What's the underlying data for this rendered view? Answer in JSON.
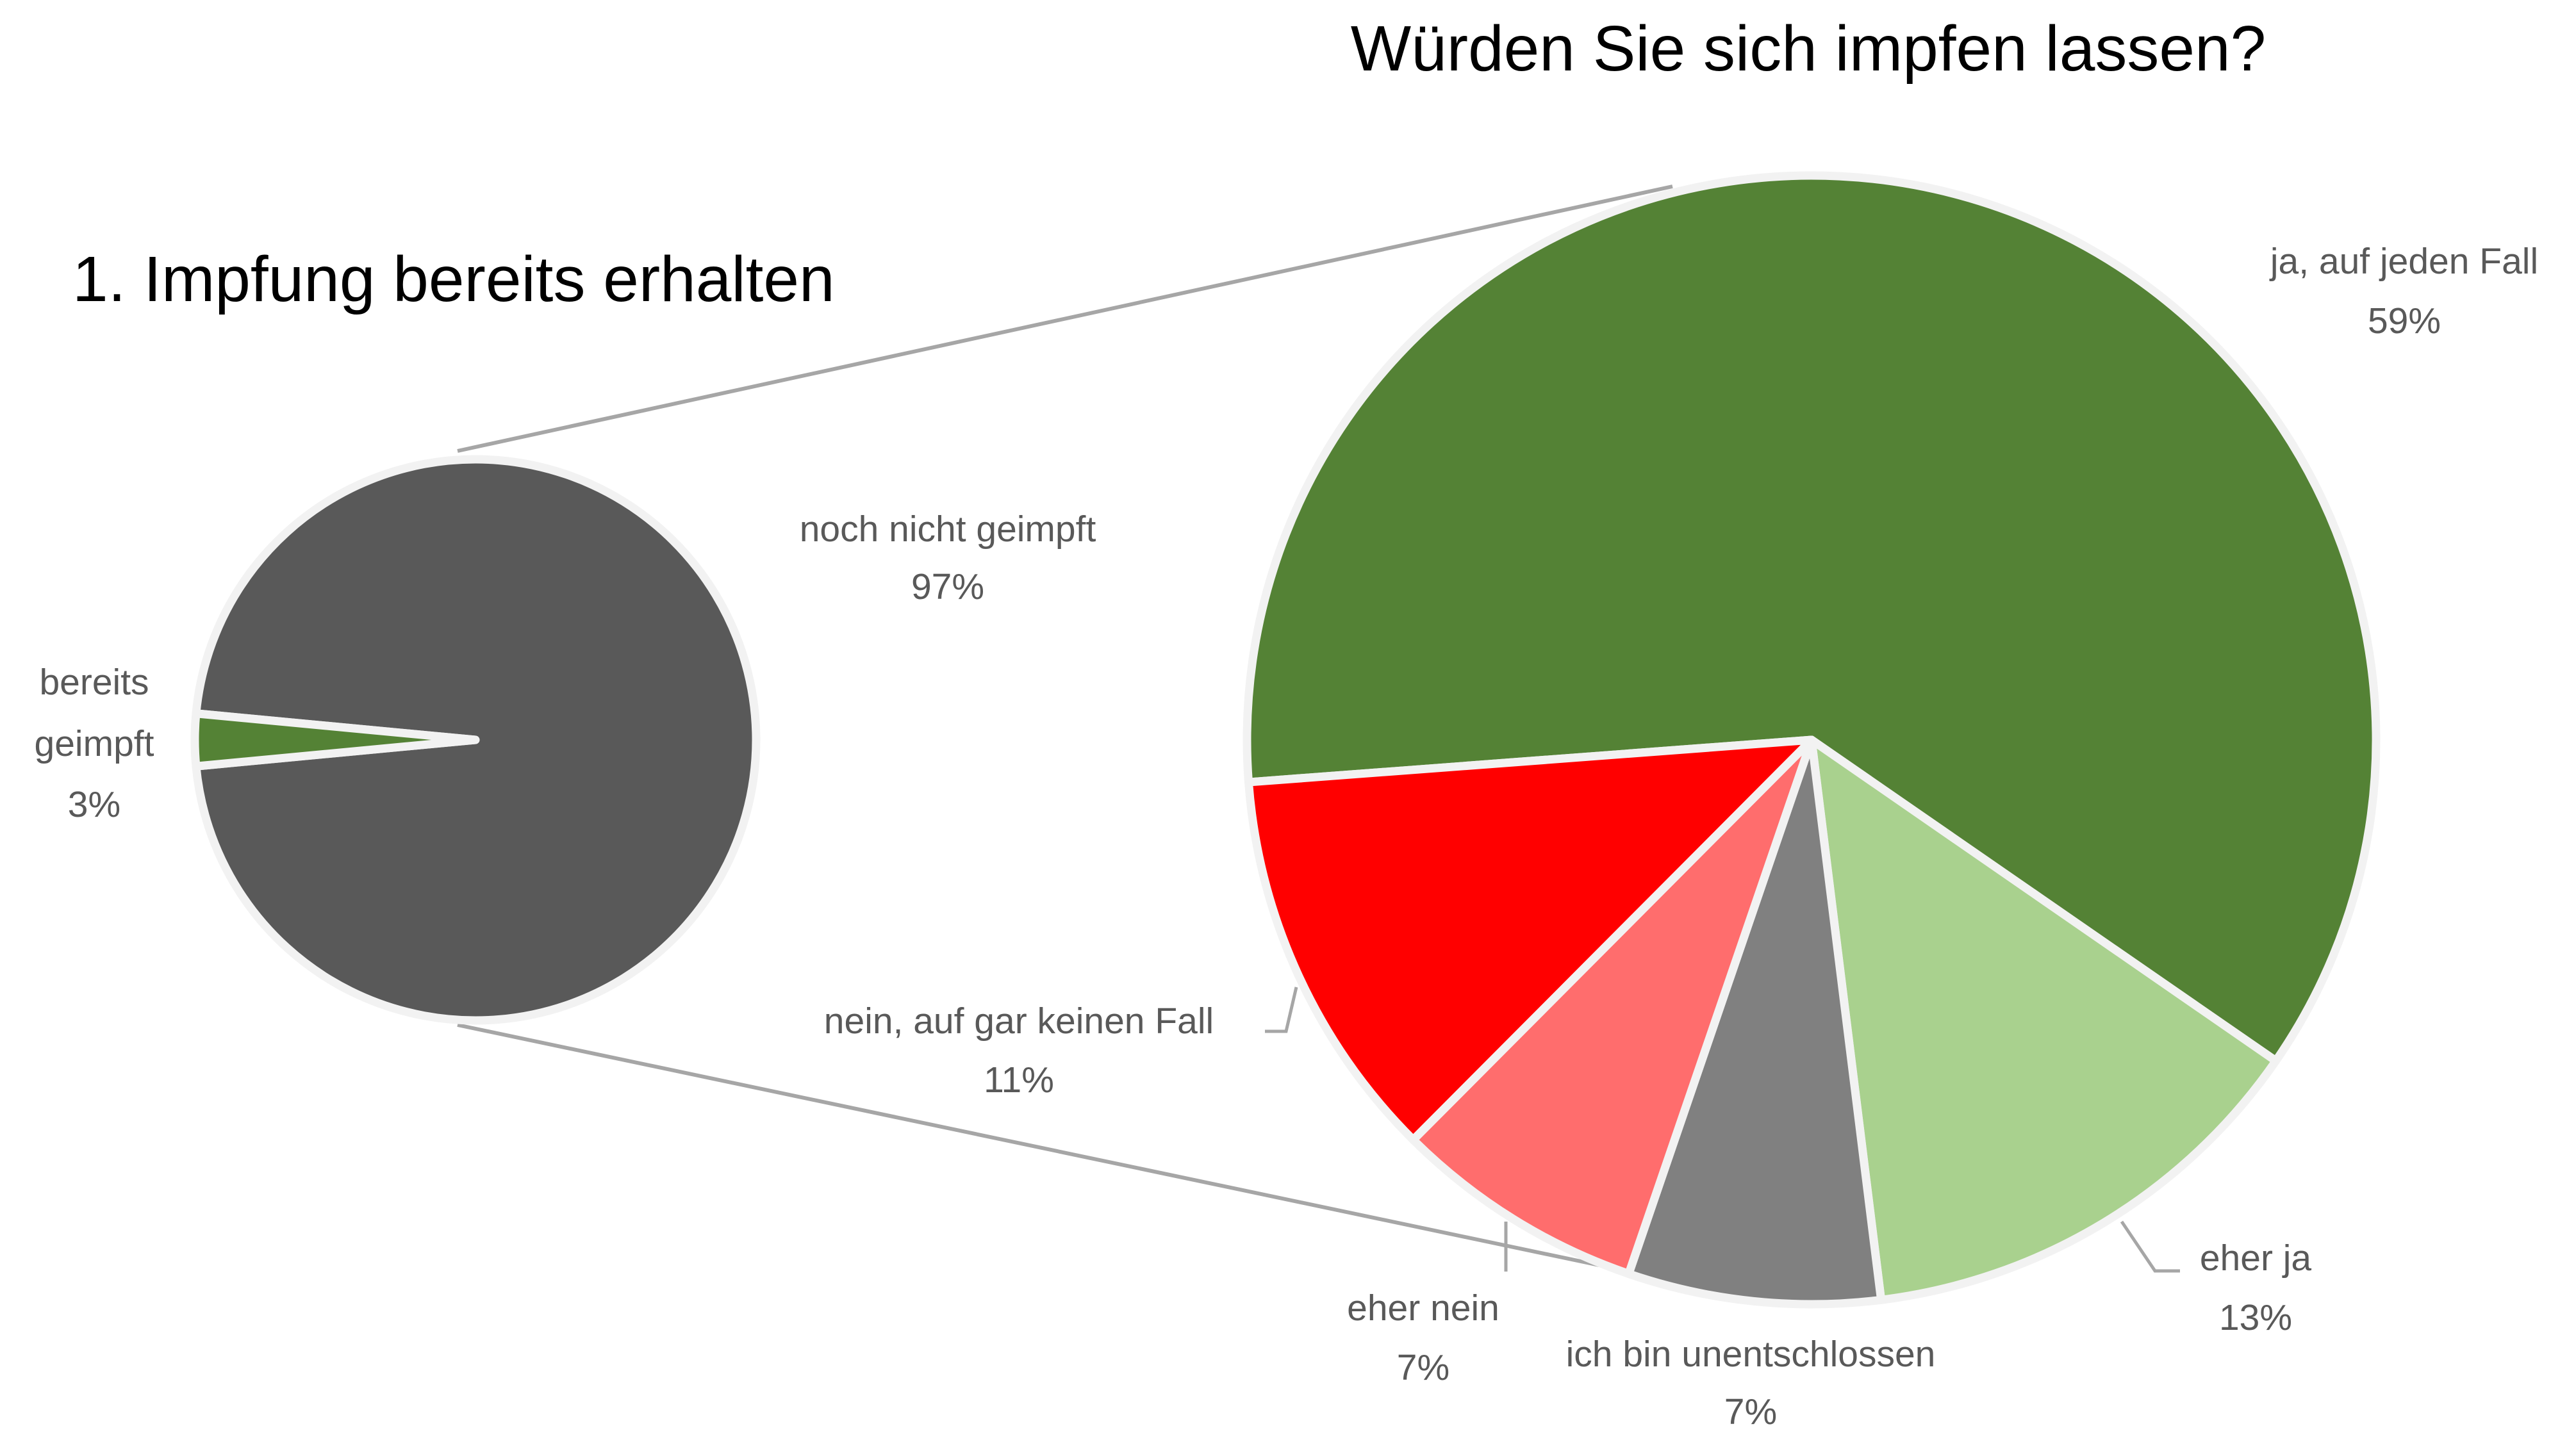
{
  "chart_data": [
    {
      "type": "pie",
      "title": "1. Impfung bereits erhalten",
      "slices": [
        {
          "label": "noch nicht geimpft",
          "value": 97,
          "value_label": "97%",
          "color": "#595959"
        },
        {
          "label": "bereits",
          "label_line2": "geimpft",
          "value": 3,
          "value_label": "3%",
          "color": "#548235"
        }
      ]
    },
    {
      "type": "pie",
      "title": "Würden Sie sich impfen lassen?",
      "note": "breakdown of 'noch nicht geimpft'",
      "slices": [
        {
          "label": "ja, auf jeden Fall",
          "value": 59,
          "value_label": "59%",
          "color": "#548235"
        },
        {
          "label": "eher ja",
          "value": 13,
          "value_label": "13%",
          "color": "#A9D18E"
        },
        {
          "label": "ich bin unentschlossen",
          "value": 7,
          "value_label": "7%",
          "color": "#808080"
        },
        {
          "label": "eher nein",
          "value": 7,
          "value_label": "7%",
          "color": "#FF6D6D"
        },
        {
          "label": "nein, auf gar keinen Fall",
          "value": 11,
          "value_label": "11%",
          "color": "#FF0000"
        }
      ]
    }
  ]
}
